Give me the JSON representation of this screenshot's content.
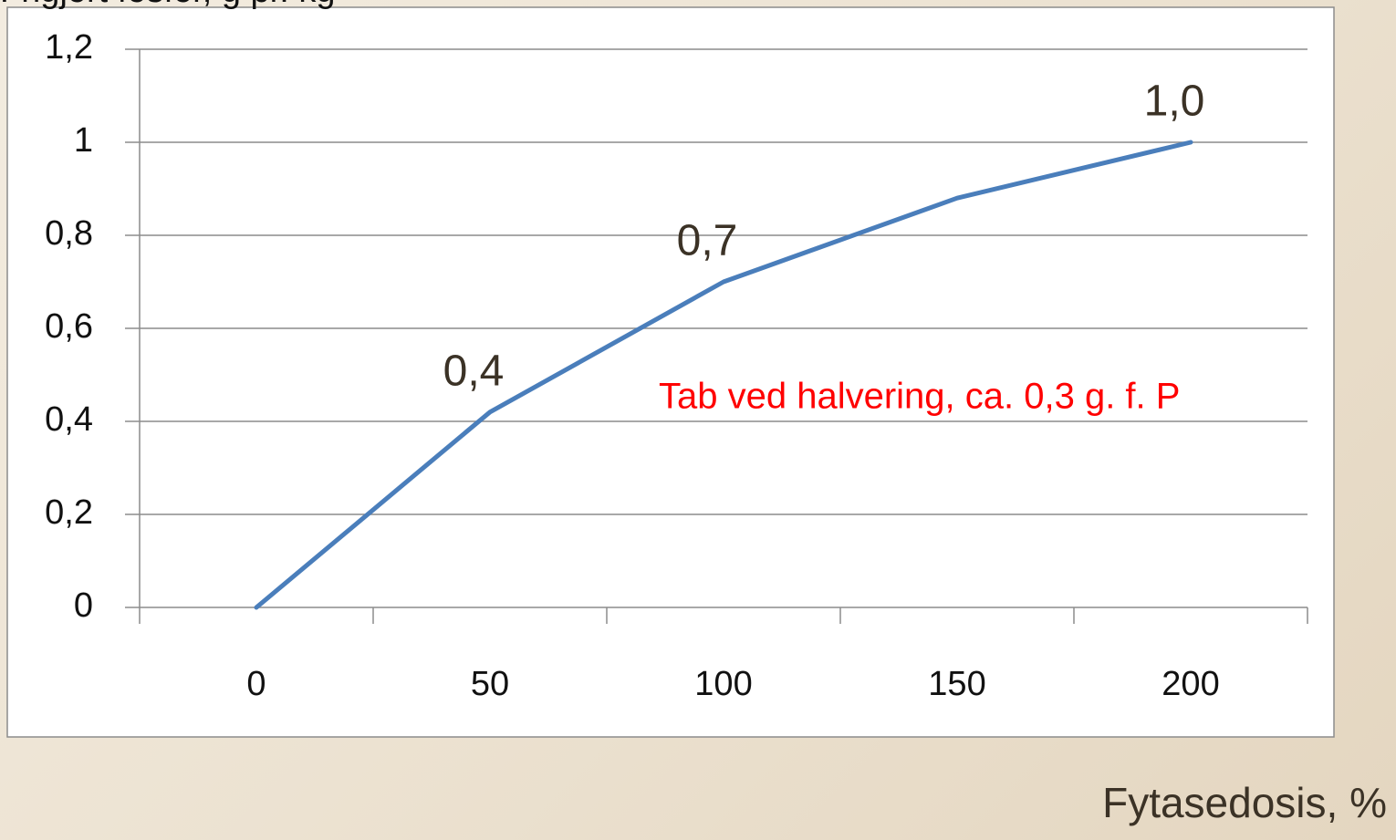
{
  "chart_data": {
    "type": "line",
    "title": "Frigjort fosfor, g pr. kg",
    "x_label": "Fytasedosis, %",
    "annotation": "Tab ved halvering, ca. 0,3 g. f. P",
    "categories": [
      "0",
      "50",
      "100",
      "150",
      "200"
    ],
    "values": [
      0,
      0.42,
      0.7,
      0.88,
      1.0
    ],
    "value_labels": [
      null,
      "0,4",
      "0,7",
      null,
      "1,0"
    ],
    "color": "#4a7ebb",
    "ylim": [
      0,
      1.2
    ],
    "yticks": [
      0,
      {
        "value": 0.2,
        "label": "0,2"
      },
      {
        "value": 0.4,
        "label": "0,4"
      },
      {
        "value": 0.6,
        "label": "0,6"
      },
      {
        "value": 0.8,
        "label": "0,8"
      },
      1,
      {
        "value": 1.2,
        "label": "1,2"
      }
    ],
    "grid": true
  }
}
